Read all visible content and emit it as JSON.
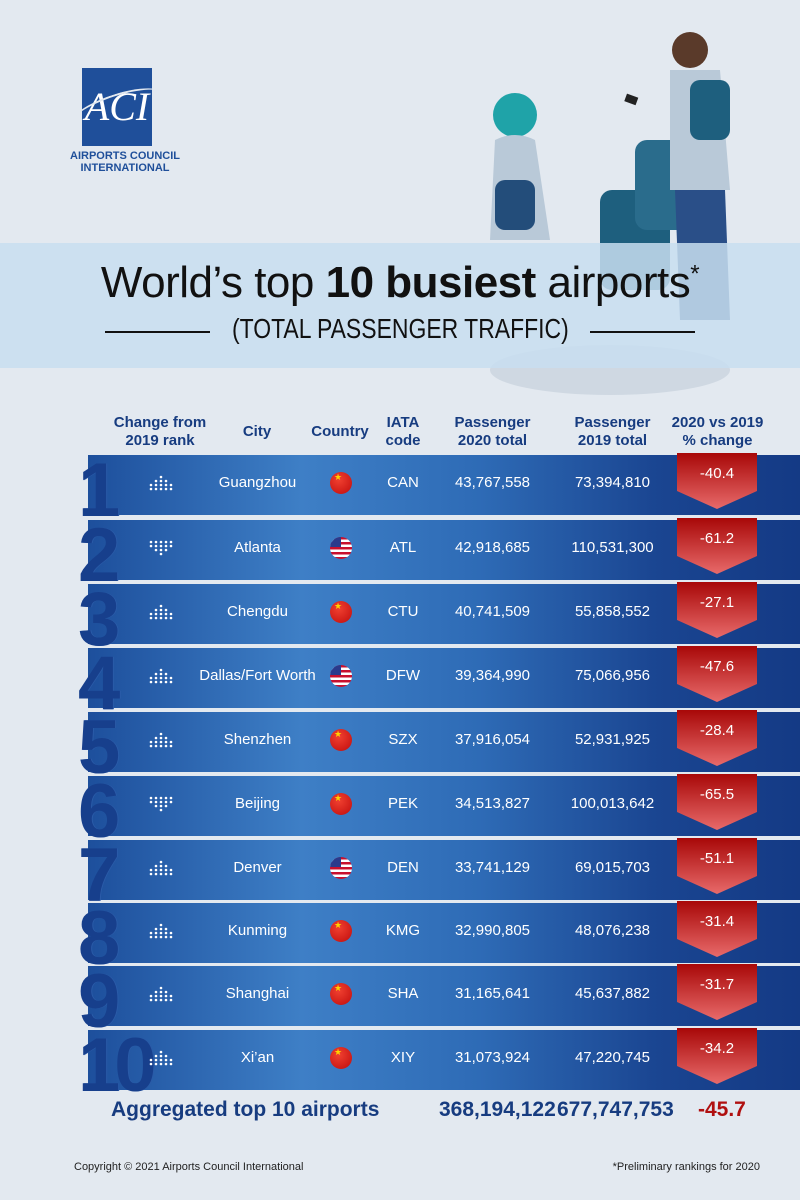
{
  "logo": {
    "text": "ACI",
    "line1": "AIRPORTS COUNCIL",
    "line2": "INTERNATIONAL"
  },
  "title": {
    "pre": "World’s top ",
    "bold": "10 busiest",
    "post": " airports",
    "mark": "*"
  },
  "subtitle": "(TOTAL PASSENGER TRAFFIC)",
  "headers": {
    "change": [
      "Change from",
      "2019 rank"
    ],
    "city": "City",
    "country": "Country",
    "iata": [
      "IATA",
      "code"
    ],
    "p2020": [
      "Passenger",
      "2020 total"
    ],
    "p2019": [
      "Passenger",
      "2019 total"
    ],
    "pct": [
      "2020 vs 2019",
      "% change"
    ]
  },
  "colors": {
    "brand": "#1f4f9a",
    "band": "#2e6bb6",
    "negative": "#b01010"
  },
  "chart_data": {
    "type": "table",
    "title": "World’s top 10 busiest airports* (TOTAL PASSENGER TRAFFIC)",
    "columns": [
      "Rank",
      "Change from 2019 rank",
      "City",
      "Country",
      "IATA code",
      "Passenger 2020 total",
      "Passenger 2019 total",
      "2020 vs 2019 % change"
    ],
    "rows": [
      {
        "rank": "1",
        "change": "up",
        "city": "Guangzhou",
        "country": "china",
        "iata": "CAN",
        "p2020": "43,767,558",
        "p2019": "73,394,810",
        "pct": "-40.4"
      },
      {
        "rank": "2",
        "change": "down",
        "city": "Atlanta",
        "country": "usa",
        "iata": "ATL",
        "p2020": "42,918,685",
        "p2019": "110,531,300",
        "pct": "-61.2"
      },
      {
        "rank": "3",
        "change": "up",
        "city": "Chengdu",
        "country": "china",
        "iata": "CTU",
        "p2020": "40,741,509",
        "p2019": "55,858,552",
        "pct": "-27.1"
      },
      {
        "rank": "4",
        "change": "up",
        "city": "Dallas/Fort Worth",
        "country": "usa",
        "iata": "DFW",
        "p2020": "39,364,990",
        "p2019": "75,066,956",
        "pct": "-47.6"
      },
      {
        "rank": "5",
        "change": "up",
        "city": "Shenzhen",
        "country": "china",
        "iata": "SZX",
        "p2020": "37,916,054",
        "p2019": "52,931,925",
        "pct": "-28.4"
      },
      {
        "rank": "6",
        "change": "down",
        "city": "Beijing",
        "country": "china",
        "iata": "PEK",
        "p2020": "34,513,827",
        "p2019": "100,013,642",
        "pct": "-65.5"
      },
      {
        "rank": "7",
        "change": "up",
        "city": "Denver",
        "country": "usa",
        "iata": "DEN",
        "p2020": "33,741,129",
        "p2019": "69,015,703",
        "pct": "-51.1"
      },
      {
        "rank": "8",
        "change": "up",
        "city": "Kunming",
        "country": "china",
        "iata": "KMG",
        "p2020": "32,990,805",
        "p2019": "48,076,238",
        "pct": "-31.4"
      },
      {
        "rank": "9",
        "change": "up",
        "city": "Shanghai",
        "country": "china",
        "iata": "SHA",
        "p2020": "31,165,641",
        "p2019": "45,637,882",
        "pct": "-31.7"
      },
      {
        "rank": "10",
        "change": "up",
        "city": "Xi’an",
        "country": "china",
        "iata": "XIY",
        "p2020": "31,073,924",
        "p2019": "47,220,745",
        "pct": "-34.2"
      }
    ],
    "aggregate": {
      "label": "Aggregated top 10 airports",
      "p2020": "368,194,122",
      "p2019": "677,747,753",
      "pct": "-45.7"
    }
  },
  "footer": {
    "copyright": "Copyright © 2021 Airports Council International",
    "note": "*Preliminary rankings for 2020"
  }
}
